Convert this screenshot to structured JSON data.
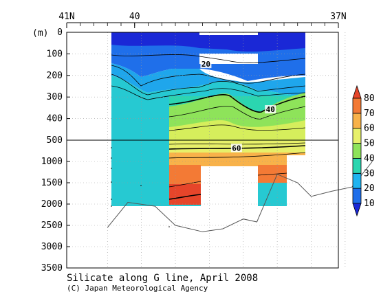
{
  "chart_data": {
    "type": "heatmap",
    "title": "Silicate along G line, April 2008",
    "credit": "(C) Japan Meteorological Agency",
    "y_unit_label": "(m)",
    "x_axis": {
      "range": [
        41,
        37
      ],
      "ticks": [
        {
          "lat": 41,
          "label": "41N"
        },
        {
          "lat": 40,
          "label": "40"
        },
        {
          "lat": 37,
          "label": "37N"
        }
      ]
    },
    "y_axis": {
      "upper_range": [
        0,
        500
      ],
      "lower_range": [
        500,
        3500
      ],
      "ticks": [
        {
          "depth": 0,
          "label": "0"
        },
        {
          "depth": 100,
          "label": "100"
        },
        {
          "depth": 200,
          "label": "200"
        },
        {
          "depth": 300,
          "label": "300"
        },
        {
          "depth": 400,
          "label": "400"
        },
        {
          "depth": 500,
          "label": "500"
        },
        {
          "depth": 1000,
          "label": "1000"
        },
        {
          "depth": 1500,
          "label": "1500"
        },
        {
          "depth": 2000,
          "label": "2000"
        },
        {
          "depth": 2500,
          "label": "2500"
        },
        {
          "depth": 3000,
          "label": "3000"
        },
        {
          "depth": 3500,
          "label": "3500"
        }
      ]
    },
    "colorbar": {
      "levels": [
        10,
        20,
        30,
        40,
        50,
        60,
        70,
        80
      ],
      "colors": [
        "#1a28d6",
        "#1f6fea",
        "#20b4f0",
        "#2bd6b0",
        "#8ee35a",
        "#e7f06a",
        "#f8b24a",
        "#f37a35",
        "#e6452a"
      ]
    },
    "contour_labels": [
      {
        "value": "20",
        "lat": 38.95,
        "depth": 150
      },
      {
        "value": "40",
        "lat": 38.0,
        "depth": 360
      },
      {
        "value": "60",
        "lat": 38.5,
        "depth": 700
      }
    ],
    "bottom_profile": [
      {
        "lat": 40.4,
        "depth": 2550
      },
      {
        "lat": 40.1,
        "depth": 1960
      },
      {
        "lat": 39.7,
        "depth": 2050
      },
      {
        "lat": 39.4,
        "depth": 2500
      },
      {
        "lat": 39.0,
        "depth": 2650
      },
      {
        "lat": 38.7,
        "depth": 2580
      },
      {
        "lat": 38.4,
        "depth": 2350
      },
      {
        "lat": 38.2,
        "depth": 2420
      },
      {
        "lat": 37.9,
        "depth": 1300
      },
      {
        "lat": 37.6,
        "depth": 1500
      },
      {
        "lat": 37.4,
        "depth": 1820
      },
      {
        "lat": 37.1,
        "depth": 1700
      },
      {
        "lat": 36.8,
        "depth": 1600
      },
      {
        "lat": 36.5,
        "depth": 1000
      }
    ]
  }
}
